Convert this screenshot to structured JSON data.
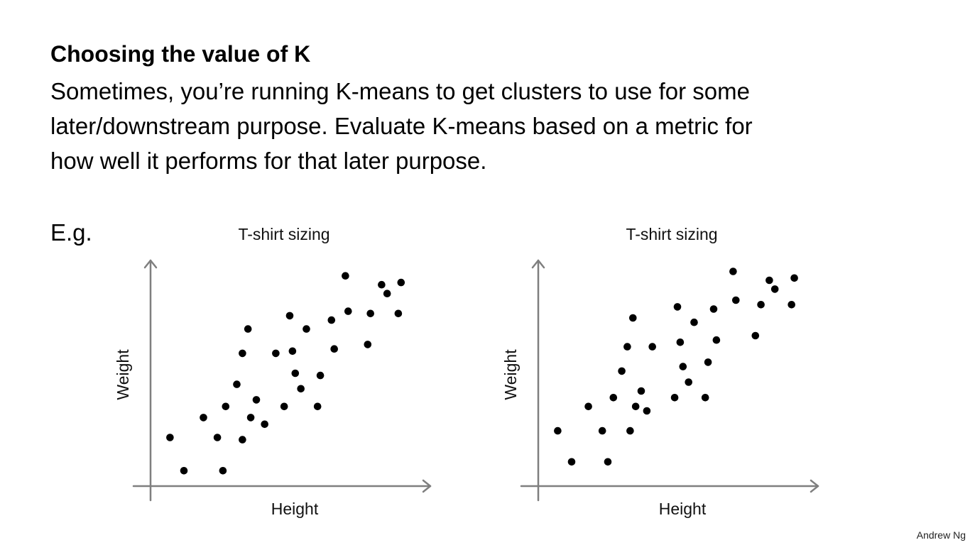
{
  "slide": {
    "heading": "Choosing the value of K",
    "body_lines": [
      "Sometimes, you’re running K-means to get clusters to use for some",
      "later/downstream purpose. Evaluate K-means based on a metric for",
      "how well it performs for that later purpose."
    ],
    "example_label": "E.g.",
    "footer": "Andrew Ng"
  },
  "colors": {
    "points": "#000000",
    "axes": "#7f7f7f",
    "text": "#000000"
  },
  "chart_data": [
    {
      "type": "scatter",
      "title": "T-shirt sizing",
      "xlabel": "Height",
      "ylabel": "Weight",
      "grid": false,
      "legend": "none",
      "axis_ticks": false,
      "xlim": [
        0,
        100
      ],
      "ylim": [
        0,
        100
      ],
      "series": [
        {
          "points": [
            [
              7,
              21
            ],
            [
              12,
              6
            ],
            [
              19,
              30
            ],
            [
              24,
              21
            ],
            [
              26,
              6
            ],
            [
              27,
              35
            ],
            [
              31,
              45
            ],
            [
              33,
              20
            ],
            [
              33,
              59
            ],
            [
              35,
              70
            ],
            [
              36,
              30
            ],
            [
              38,
              38
            ],
            [
              41,
              27
            ],
            [
              45,
              59
            ],
            [
              48,
              35
            ],
            [
              50,
              76
            ],
            [
              51,
              60
            ],
            [
              52,
              50
            ],
            [
              54,
              43
            ],
            [
              56,
              70
            ],
            [
              60,
              35
            ],
            [
              61,
              49
            ],
            [
              65,
              74
            ],
            [
              66,
              61
            ],
            [
              70,
              94
            ],
            [
              71,
              78
            ],
            [
              78,
              63
            ],
            [
              79,
              77
            ],
            [
              83,
              90
            ],
            [
              85,
              86
            ],
            [
              89,
              77
            ],
            [
              90,
              91
            ]
          ]
        }
      ]
    },
    {
      "type": "scatter",
      "title": "T-shirt sizing",
      "xlabel": "Height",
      "ylabel": "Weight",
      "grid": false,
      "legend": "none",
      "axis_ticks": false,
      "xlim": [
        0,
        100
      ],
      "ylim": [
        0,
        100
      ],
      "series": [
        {
          "points": [
            [
              7,
              24
            ],
            [
              12,
              10
            ],
            [
              18,
              35
            ],
            [
              23,
              24
            ],
            [
              25,
              10
            ],
            [
              27,
              39
            ],
            [
              30,
              51
            ],
            [
              32,
              62
            ],
            [
              33,
              24
            ],
            [
              34,
              75
            ],
            [
              35,
              35
            ],
            [
              37,
              42
            ],
            [
              39,
              33
            ],
            [
              41,
              62
            ],
            [
              49,
              39
            ],
            [
              50,
              80
            ],
            [
              51,
              64
            ],
            [
              52,
              53
            ],
            [
              54,
              46
            ],
            [
              56,
              73
            ],
            [
              60,
              39
            ],
            [
              61,
              55
            ],
            [
              63,
              79
            ],
            [
              64,
              65
            ],
            [
              70,
              96
            ],
            [
              71,
              83
            ],
            [
              78,
              67
            ],
            [
              80,
              81
            ],
            [
              83,
              92
            ],
            [
              85,
              88
            ],
            [
              91,
              81
            ],
            [
              92,
              93
            ]
          ]
        }
      ]
    }
  ]
}
